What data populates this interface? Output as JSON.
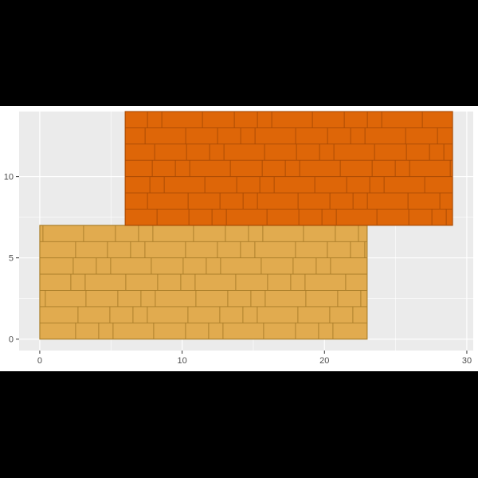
{
  "chart_data": {
    "type": "rect",
    "x_ticks": [
      "0",
      "10",
      "20",
      "30"
    ],
    "y_ticks": [
      "0",
      "5",
      "10"
    ],
    "xlim": [
      -1.45,
      30.45
    ],
    "ylim": [
      -0.7,
      14.0
    ],
    "series": [
      {
        "xmin": 0,
        "xmax": 23,
        "ymin": 0,
        "ymax": 7,
        "fill": "#E1AB4F",
        "stroke": "#A87C28"
      },
      {
        "xmin": 6,
        "xmax": 29,
        "ymin": 7,
        "ymax": 14,
        "fill": "#DE6608",
        "stroke": "#A84A04"
      }
    ],
    "grid": true,
    "panel_background": "#EBEBEB",
    "grid_color": "#FFFFFF",
    "figure_background": "#FFFFFF",
    "outer_background": "#000000",
    "pattern": "brick"
  }
}
